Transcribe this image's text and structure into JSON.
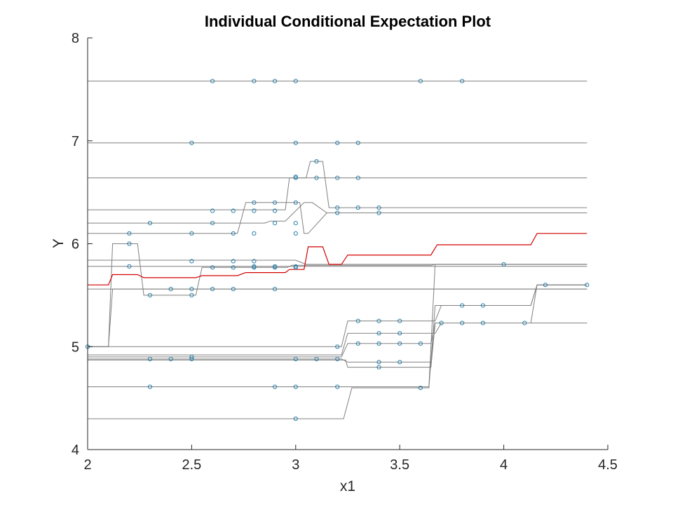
{
  "chart_data": {
    "type": "line",
    "title": "Individual Conditional Expectation Plot",
    "xlabel": "x1",
    "ylabel": "Y",
    "xlim": [
      2,
      4.5
    ],
    "ylim": [
      4,
      8
    ],
    "xticks": [
      2,
      2.5,
      3,
      3.5,
      4,
      4.5
    ],
    "xtick_labels": [
      "2",
      "2.5",
      "3",
      "3.5",
      "4",
      "4.5"
    ],
    "yticks": [
      4,
      5,
      6,
      7,
      8
    ],
    "ytick_labels": [
      "4",
      "5",
      "6",
      "7",
      "8"
    ],
    "grid": false,
    "colors": {
      "ice_line": "#808080",
      "average_line": "#d40000",
      "marker_edge": "#2a7fa8",
      "axis": "#262626"
    },
    "ice_lines": [
      {
        "values": [
          [
            2.0,
            7.58
          ],
          [
            4.4,
            7.58
          ]
        ]
      },
      {
        "values": [
          [
            2.0,
            6.98
          ],
          [
            4.4,
            6.98
          ]
        ]
      },
      {
        "values": [
          [
            2.0,
            6.64
          ],
          [
            4.4,
            6.64
          ]
        ]
      },
      {
        "values": [
          [
            2.0,
            6.33
          ],
          [
            2.65,
            6.33
          ],
          [
            2.68,
            6.33
          ],
          [
            2.95,
            6.33
          ],
          [
            2.97,
            6.64
          ],
          [
            3.05,
            6.64
          ],
          [
            3.07,
            6.8
          ],
          [
            3.13,
            6.8
          ],
          [
            3.16,
            6.35
          ],
          [
            4.4,
            6.35
          ]
        ]
      },
      {
        "values": [
          [
            2.0,
            6.2
          ],
          [
            2.85,
            6.2
          ],
          [
            2.88,
            6.22
          ],
          [
            2.95,
            6.22
          ],
          [
            3.04,
            6.4
          ],
          [
            3.08,
            6.4
          ],
          [
            3.15,
            6.3
          ],
          [
            4.4,
            6.3
          ]
        ]
      },
      {
        "values": [
          [
            2.0,
            6.1
          ],
          [
            2.72,
            6.1
          ],
          [
            2.76,
            6.4
          ],
          [
            3.02,
            6.4
          ],
          [
            3.04,
            6.1
          ],
          [
            3.06,
            6.1
          ],
          [
            3.15,
            6.3
          ],
          [
            4.4,
            6.3
          ]
        ]
      },
      {
        "values": [
          [
            2.0,
            5.84
          ],
          [
            3.0,
            5.84
          ],
          [
            3.05,
            5.8
          ],
          [
            4.4,
            5.8
          ]
        ]
      },
      {
        "values": [
          [
            2.0,
            5.78
          ],
          [
            4.4,
            5.78
          ]
        ]
      },
      {
        "values": [
          [
            2.0,
            5.56
          ],
          [
            4.4,
            5.56
          ]
        ]
      },
      {
        "values": [
          [
            2.0,
            5.0
          ],
          [
            2.1,
            5.0
          ],
          [
            2.12,
            6.0
          ],
          [
            2.24,
            6.0
          ],
          [
            2.27,
            5.5
          ],
          [
            2.52,
            5.5
          ],
          [
            2.55,
            5.77
          ],
          [
            2.96,
            5.77
          ],
          [
            2.98,
            5.79
          ],
          [
            3.03,
            5.79
          ],
          [
            3.05,
            5.79
          ],
          [
            3.2,
            5.79
          ],
          [
            3.22,
            5.79
          ],
          [
            3.65,
            5.79
          ],
          [
            3.67,
            5.8
          ],
          [
            4.4,
            5.8
          ]
        ]
      },
      {
        "values": [
          [
            2.0,
            5.0
          ],
          [
            2.1,
            5.0
          ],
          [
            2.12,
            5.56
          ],
          [
            2.55,
            5.56
          ],
          [
            2.6,
            5.56
          ],
          [
            3.04,
            5.56
          ],
          [
            3.06,
            5.56
          ],
          [
            4.4,
            5.56
          ]
        ]
      },
      {
        "values": [
          [
            2.0,
            5.0
          ],
          [
            3.04,
            5.0
          ],
          [
            3.06,
            5.0
          ],
          [
            3.22,
            5.0
          ],
          [
            3.25,
            5.25
          ],
          [
            3.67,
            5.25
          ],
          [
            3.7,
            5.4
          ],
          [
            4.13,
            5.4
          ],
          [
            4.16,
            5.6
          ],
          [
            4.4,
            5.6
          ]
        ]
      },
      {
        "values": [
          [
            2.0,
            4.92
          ],
          [
            3.22,
            4.92
          ],
          [
            3.25,
            5.13
          ],
          [
            3.67,
            5.13
          ],
          [
            3.7,
            5.23
          ],
          [
            4.13,
            5.23
          ],
          [
            4.16,
            5.6
          ],
          [
            4.4,
            5.6
          ]
        ]
      },
      {
        "values": [
          [
            2.0,
            4.9
          ],
          [
            3.22,
            4.9
          ],
          [
            3.25,
            5.03
          ],
          [
            3.65,
            5.03
          ],
          [
            3.67,
            5.23
          ],
          [
            4.4,
            5.23
          ]
        ]
      },
      {
        "values": [
          [
            2.0,
            4.88
          ],
          [
            3.22,
            4.88
          ],
          [
            3.25,
            4.85
          ],
          [
            3.65,
            4.85
          ],
          [
            3.67,
            5.23
          ],
          [
            4.4,
            5.23
          ]
        ]
      },
      {
        "values": [
          [
            2.0,
            4.87
          ],
          [
            3.24,
            4.87
          ],
          [
            3.25,
            4.8
          ],
          [
            3.65,
            4.8
          ],
          [
            3.67,
            5.23
          ],
          [
            4.4,
            5.23
          ]
        ]
      },
      {
        "values": [
          [
            2.0,
            4.61
          ],
          [
            3.22,
            4.61
          ],
          [
            3.27,
            4.61
          ],
          [
            3.64,
            4.61
          ],
          [
            3.67,
            5.8
          ],
          [
            4.4,
            5.8
          ]
        ]
      },
      {
        "values": [
          [
            2.0,
            4.3
          ],
          [
            3.23,
            4.3
          ],
          [
            3.27,
            4.6
          ],
          [
            3.64,
            4.6
          ],
          [
            3.67,
            5.4
          ],
          [
            4.13,
            5.4
          ],
          [
            4.16,
            5.6
          ],
          [
            4.4,
            5.6
          ]
        ]
      }
    ],
    "average_line": {
      "values": [
        [
          2.0,
          5.6
        ],
        [
          2.1,
          5.6
        ],
        [
          2.12,
          5.7
        ],
        [
          2.24,
          5.7
        ],
        [
          2.27,
          5.67
        ],
        [
          2.52,
          5.67
        ],
        [
          2.55,
          5.69
        ],
        [
          2.72,
          5.69
        ],
        [
          2.76,
          5.72
        ],
        [
          2.95,
          5.72
        ],
        [
          2.97,
          5.75
        ],
        [
          3.04,
          5.75
        ],
        [
          3.06,
          5.97
        ],
        [
          3.13,
          5.97
        ],
        [
          3.16,
          5.8
        ],
        [
          3.22,
          5.8
        ],
        [
          3.25,
          5.89
        ],
        [
          3.65,
          5.89
        ],
        [
          3.68,
          5.99
        ],
        [
          4.13,
          5.99
        ],
        [
          4.16,
          6.1
        ],
        [
          4.4,
          6.1
        ]
      ]
    },
    "observations": [
      [
        2.6,
        7.58
      ],
      [
        2.8,
        7.58
      ],
      [
        2.9,
        7.58
      ],
      [
        3.0,
        7.58
      ],
      [
        3.6,
        7.58
      ],
      [
        3.8,
        7.58
      ],
      [
        2.5,
        6.98
      ],
      [
        3.0,
        6.98
      ],
      [
        3.2,
        6.98
      ],
      [
        3.3,
        6.98
      ],
      [
        3.0,
        6.64
      ],
      [
        3.1,
        6.64
      ],
      [
        3.2,
        6.64
      ],
      [
        3.3,
        6.64
      ],
      [
        3.0,
        6.65
      ],
      [
        3.1,
        6.8
      ],
      [
        2.6,
        6.32
      ],
      [
        2.7,
        6.32
      ],
      [
        2.8,
        6.32
      ],
      [
        2.9,
        6.32
      ],
      [
        2.8,
        6.4
      ],
      [
        2.9,
        6.4
      ],
      [
        3.0,
        6.4
      ],
      [
        3.2,
        6.35
      ],
      [
        3.3,
        6.35
      ],
      [
        3.4,
        6.35
      ],
      [
        3.2,
        6.3
      ],
      [
        3.4,
        6.3
      ],
      [
        2.2,
        6.1
      ],
      [
        2.5,
        6.1
      ],
      [
        2.7,
        6.1
      ],
      [
        2.8,
        6.1
      ],
      [
        3.0,
        6.1
      ],
      [
        2.3,
        6.2
      ],
      [
        2.6,
        6.2
      ],
      [
        2.9,
        6.2
      ],
      [
        3.0,
        6.2
      ],
      [
        2.2,
        6.0
      ],
      [
        2.2,
        5.78
      ],
      [
        2.5,
        5.83
      ],
      [
        2.7,
        5.83
      ],
      [
        2.8,
        5.83
      ],
      [
        2.6,
        5.77
      ],
      [
        2.7,
        5.77
      ],
      [
        2.8,
        5.77
      ],
      [
        2.8,
        5.78
      ],
      [
        2.9,
        5.77
      ],
      [
        2.9,
        5.78
      ],
      [
        3.0,
        5.77
      ],
      [
        3.0,
        5.78
      ],
      [
        2.4,
        5.56
      ],
      [
        2.5,
        5.56
      ],
      [
        2.6,
        5.56
      ],
      [
        2.7,
        5.56
      ],
      [
        2.9,
        5.56
      ],
      [
        2.3,
        5.5
      ],
      [
        2.5,
        5.5
      ],
      [
        2.0,
        5.0
      ],
      [
        3.2,
        5.0
      ],
      [
        3.3,
        5.25
      ],
      [
        3.4,
        5.25
      ],
      [
        3.5,
        5.25
      ],
      [
        3.4,
        5.13
      ],
      [
        3.5,
        5.13
      ],
      [
        3.3,
        5.03
      ],
      [
        3.4,
        5.03
      ],
      [
        3.5,
        5.03
      ],
      [
        3.6,
        5.03
      ],
      [
        2.3,
        4.88
      ],
      [
        2.4,
        4.88
      ],
      [
        2.5,
        4.88
      ],
      [
        2.5,
        4.9
      ],
      [
        3.0,
        4.88
      ],
      [
        3.1,
        4.88
      ],
      [
        3.2,
        4.88
      ],
      [
        3.4,
        4.85
      ],
      [
        3.5,
        4.85
      ],
      [
        3.4,
        4.8
      ],
      [
        2.3,
        4.61
      ],
      [
        2.9,
        4.61
      ],
      [
        3.0,
        4.61
      ],
      [
        3.2,
        4.61
      ],
      [
        3.6,
        4.6
      ],
      [
        3.0,
        4.3
      ],
      [
        3.7,
        5.23
      ],
      [
        3.8,
        5.23
      ],
      [
        3.9,
        5.23
      ],
      [
        4.1,
        5.23
      ],
      [
        3.8,
        5.4
      ],
      [
        3.9,
        5.4
      ],
      [
        4.0,
        5.8
      ],
      [
        4.2,
        5.6
      ],
      [
        4.4,
        5.6
      ]
    ]
  }
}
